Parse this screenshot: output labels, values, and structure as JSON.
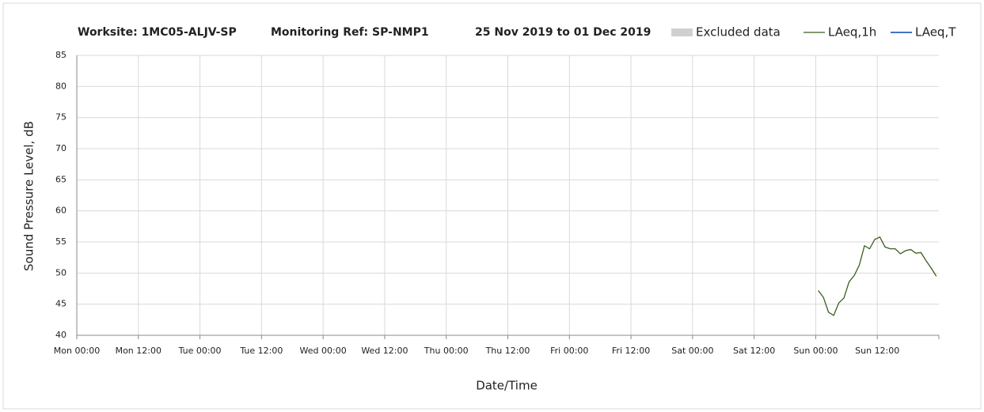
{
  "chart_data": {
    "type": "line",
    "title": "Worksite: 1MC05-ALJV-SP",
    "subtitle": "Monitoring Ref: SP-NMP1",
    "date_range": "25 Nov 2019 to 01 Dec 2019",
    "xlabel": "Date/Time",
    "ylabel": "Sound Pressure Level, dB",
    "xlim": [
      0,
      168
    ],
    "xticks": [
      {
        "value": 0,
        "label": "Mon 00:00"
      },
      {
        "value": 12,
        "label": "Mon 12:00"
      },
      {
        "value": 24,
        "label": "Tue 00:00"
      },
      {
        "value": 36,
        "label": "Tue 12:00"
      },
      {
        "value": 48,
        "label": "Wed 00:00"
      },
      {
        "value": 60,
        "label": "Wed 12:00"
      },
      {
        "value": 72,
        "label": "Thu 00:00"
      },
      {
        "value": 84,
        "label": "Thu 12:00"
      },
      {
        "value": 96,
        "label": "Fri 00:00"
      },
      {
        "value": 108,
        "label": "Fri 12:00"
      },
      {
        "value": 120,
        "label": "Sat 00:00"
      },
      {
        "value": 132,
        "label": "Sat 12:00"
      },
      {
        "value": 144,
        "label": "Sun 00:00"
      },
      {
        "value": 156,
        "label": "Sun 12:00"
      }
    ],
    "ylim": [
      40,
      85
    ],
    "yticks": [
      40,
      45,
      50,
      55,
      60,
      65,
      70,
      75,
      80,
      85
    ],
    "grid": true,
    "series": [
      {
        "name": "Excluded data",
        "color": "#d0d0d0",
        "x": [],
        "values": []
      },
      {
        "name": "LAeq,1h",
        "color": "#3a5f1e",
        "x": [
          144.5,
          145.5,
          146.5,
          147.5,
          148.5,
          149.5,
          150.5,
          151.5,
          152.5,
          153.5,
          154.5,
          155.5,
          156.5,
          157.5,
          158.5,
          159.5,
          160.5,
          161.5,
          162.5,
          163.5,
          164.5,
          165.5,
          166.5,
          167.5
        ],
        "values": [
          47.2,
          46.1,
          43.7,
          43.2,
          45.2,
          46.0,
          48.6,
          49.6,
          51.3,
          54.4,
          53.9,
          55.4,
          55.8,
          54.2,
          53.9,
          53.9,
          53.1,
          53.6,
          53.8,
          53.2,
          53.3,
          52.0,
          50.8,
          49.5
        ]
      },
      {
        "name": "LAeq,T",
        "color": "#4472c4",
        "x": [],
        "values": []
      }
    ]
  }
}
